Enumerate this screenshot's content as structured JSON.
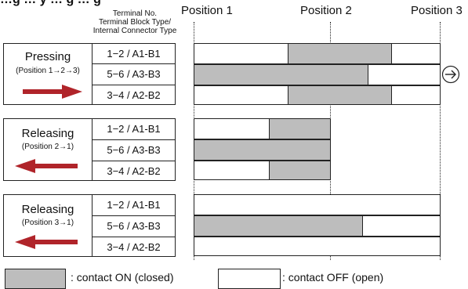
{
  "header": {
    "title_partial": "…g … y … g … g",
    "column_header_lines": [
      "Terminal No.",
      "Terminal Block Type/",
      "Internal Connector Type"
    ],
    "positions": [
      "Position 1",
      "Position 2",
      "Position 3"
    ]
  },
  "diagram_data": {
    "axis": {
      "position_1": 0,
      "position_2": 1,
      "position_3": 2
    },
    "modes": [
      {
        "title": "Pressing",
        "subtitle": "(Position 1→2→3)",
        "arrow_direction": "right",
        "rows": [
          {
            "terminal": "1−2 / A1-B1",
            "on_from": 0.69,
            "on_to": 1.56,
            "extends": true
          },
          {
            "terminal": "5−6 / A3-B3",
            "on_from": 0.0,
            "on_to": 1.34,
            "extends": true
          },
          {
            "terminal": "3−4 / A2-B2",
            "on_from": 0.69,
            "on_to": 1.56,
            "extends": true
          }
        ],
        "end_icon": "circled-right-arrow-icon"
      },
      {
        "title": "Releasing",
        "subtitle": "(Position 2→1)",
        "arrow_direction": "left",
        "rows": [
          {
            "terminal": "1−2 / A1-B1",
            "on_from": 0.55,
            "on_to": 1.0,
            "extends": false
          },
          {
            "terminal": "5−6 / A3-B3",
            "on_from": 0.0,
            "on_to": 1.0,
            "extends": false
          },
          {
            "terminal": "3−4 / A2-B2",
            "on_from": 0.55,
            "on_to": 1.0,
            "extends": false
          }
        ]
      },
      {
        "title": "Releasing",
        "subtitle": "(Position 3→1)",
        "arrow_direction": "left",
        "rows": [
          {
            "terminal": "1−2 / A1-B1",
            "on_from": null,
            "on_to": null,
            "extends": true
          },
          {
            "terminal": "5−6 / A3-B3",
            "on_from": 0.0,
            "on_to": 1.29,
            "extends": true
          },
          {
            "terminal": "3−4 / A2-B2",
            "on_from": null,
            "on_to": null,
            "extends": true
          }
        ]
      }
    ]
  },
  "legend": {
    "on_label": ": contact ON (closed)",
    "off_label": ": contact OFF (open)"
  },
  "colors": {
    "on_fill": "#bdbdbd",
    "arrow": "#b0242a",
    "border": "#222222"
  }
}
